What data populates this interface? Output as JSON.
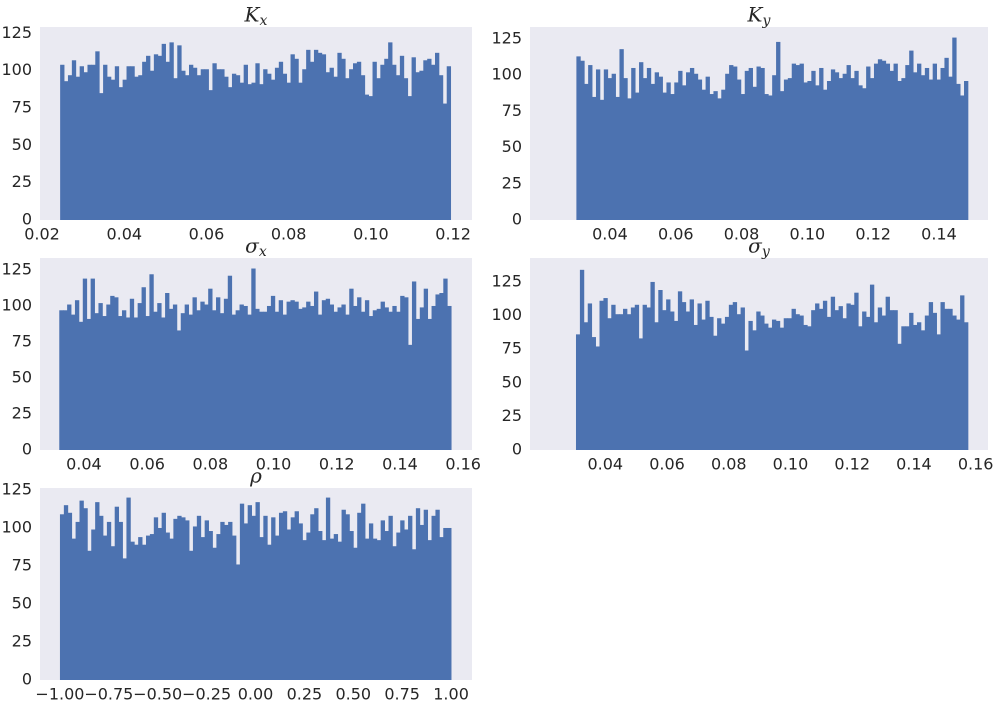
{
  "chart_data": [
    {
      "type": "histogram",
      "title": "K",
      "title_sub": "x",
      "color": "#4c72b0",
      "background": "#eaeaf2",
      "grid": false,
      "bins": [
        0.0244,
        0.02535,
        0.0263,
        0.02725,
        0.0282,
        0.02915,
        0.0301,
        0.03105,
        0.032,
        0.03295,
        0.0339,
        0.03485,
        0.0358,
        0.03675,
        0.0377,
        0.03865,
        0.0396,
        0.04055,
        0.0415,
        0.04245,
        0.0434,
        0.04435,
        0.0453,
        0.04625,
        0.0472,
        0.04815,
        0.0491,
        0.05005,
        0.051,
        0.05195,
        0.0529,
        0.05385,
        0.0548,
        0.05575,
        0.0567,
        0.05765,
        0.0586,
        0.05955,
        0.0605,
        0.06145,
        0.0624,
        0.06335,
        0.0643,
        0.06525,
        0.0662,
        0.06715,
        0.0681,
        0.06905,
        0.07,
        0.07095,
        0.0719,
        0.07285,
        0.0738,
        0.07475,
        0.0757,
        0.07665,
        0.0776,
        0.07855,
        0.0795,
        0.08045,
        0.0814,
        0.08235,
        0.0833,
        0.08425,
        0.0852,
        0.08615,
        0.0871,
        0.08805,
        0.089,
        0.08995,
        0.0909,
        0.09185,
        0.0928,
        0.09375,
        0.0947,
        0.09565,
        0.0966,
        0.09755,
        0.0985,
        0.09945,
        0.1004,
        0.10135,
        0.1023,
        0.10325,
        0.1042,
        0.10515,
        0.1061,
        0.10705,
        0.108,
        0.10895,
        0.1099,
        0.11085,
        0.1118,
        0.11275,
        0.1137,
        0.11465,
        0.1156,
        0.11655,
        0.1175,
        0.11845,
        0.1194
      ],
      "values": [
        104,
        93,
        97,
        107,
        96,
        103,
        99,
        104,
        104,
        113,
        85,
        104,
        96,
        94,
        103,
        89,
        94,
        103,
        103,
        96,
        97,
        106,
        110,
        100,
        111,
        110,
        118,
        106,
        119,
        95,
        117,
        100,
        97,
        104,
        102,
        97,
        101,
        101,
        87,
        105,
        101,
        101,
        96,
        89,
        98,
        97,
        92,
        104,
        91,
        92,
        105,
        91,
        101,
        98,
        94,
        102,
        106,
        98,
        92,
        111,
        108,
        92,
        101,
        114,
        106,
        114,
        112,
        111,
        99,
        102,
        96,
        112,
        108,
        95,
        101,
        105,
        106,
        97,
        84,
        83,
        106,
        95,
        104,
        108,
        119,
        104,
        97,
        110,
        95,
        83,
        109,
        99,
        100,
        107,
        108,
        104,
        112,
        97,
        78,
        103
      ],
      "xlim": [
        0.0195,
        0.1246
      ],
      "ylim": [
        0,
        129.3
      ],
      "xticks": [
        0.02,
        0.04,
        0.06,
        0.08,
        {
          "value": 0.1,
          "label": "0.10"
        },
        0.12
      ],
      "yticks": [
        0,
        25,
        50,
        75,
        100,
        125
      ]
    },
    {
      "type": "histogram",
      "title": "K",
      "title_sub": "y",
      "color": "#4c72b0",
      "background": "#eaeaf2",
      "grid": false,
      "bins": [
        0.0298,
        0.03099,
        0.03218,
        0.03337,
        0.03456,
        0.03575,
        0.03694,
        0.03813,
        0.03932,
        0.04051,
        0.0417,
        0.04289,
        0.04408,
        0.04527,
        0.04646,
        0.04765,
        0.04884,
        0.05003,
        0.05122,
        0.05241,
        0.0536,
        0.05479,
        0.05598,
        0.05717,
        0.05836,
        0.05955,
        0.06074,
        0.06193,
        0.06312,
        0.06431,
        0.0655,
        0.06669,
        0.06788,
        0.06907,
        0.07026,
        0.07145,
        0.07264,
        0.07383,
        0.07502,
        0.07621,
        0.0774,
        0.07859,
        0.07978,
        0.08097,
        0.08216,
        0.08335,
        0.08454,
        0.08573,
        0.08692,
        0.08811,
        0.0893,
        0.09049,
        0.09168,
        0.09287,
        0.09406,
        0.09525,
        0.09644,
        0.09763,
        0.09882,
        0.10001,
        0.1012,
        0.10239,
        0.10358,
        0.10477,
        0.10596,
        0.10715,
        0.10834,
        0.10953,
        0.11072,
        0.11191,
        0.1131,
        0.11429,
        0.11548,
        0.11667,
        0.11786,
        0.11905,
        0.12024,
        0.12143,
        0.12262,
        0.12381,
        0.125,
        0.12619,
        0.12738,
        0.12857,
        0.12976,
        0.13095,
        0.13214,
        0.13333,
        0.13452,
        0.13571,
        0.1369,
        0.13809,
        0.13928,
        0.14047,
        0.14166,
        0.14285,
        0.14404,
        0.14523,
        0.14642,
        0.14761,
        0.1488
      ],
      "values": [
        113,
        110,
        94,
        107,
        85,
        104,
        83,
        104,
        98,
        101,
        85,
        118,
        98,
        84,
        105,
        88,
        109,
        98,
        105,
        94,
        102,
        99,
        88,
        95,
        87,
        95,
        103,
        93,
        102,
        105,
        101,
        97,
        90,
        99,
        87,
        89,
        84,
        90,
        101,
        107,
        106,
        97,
        87,
        103,
        105,
        92,
        106,
        105,
        87,
        86,
        100,
        123,
        89,
        97,
        98,
        108,
        107,
        108,
        95,
        96,
        103,
        93,
        105,
        90,
        96,
        104,
        102,
        98,
        101,
        107,
        98,
        103,
        93,
        91,
        106,
        98,
        108,
        111,
        110,
        108,
        103,
        108,
        96,
        98,
        107,
        117,
        102,
        108,
        100,
        105,
        97,
        108,
        97,
        105,
        112,
        99,
        126,
        94,
        86,
        96
      ],
      "xlim": [
        0.0157,
        0.1549
      ],
      "ylim": [
        0,
        133.3
      ],
      "xticks": [
        0.04,
        0.06,
        0.08,
        {
          "value": 0.1,
          "label": "0.10"
        },
        0.12,
        0.14
      ],
      "yticks": [
        0,
        25,
        50,
        75,
        100,
        125
      ]
    },
    {
      "type": "histogram",
      "title": "σ",
      "title_sub": "x",
      "color": "#4c72b0",
      "background": "#eaeaf2",
      "grid": false,
      "bins": [
        0.0322,
        0.03344,
        0.03468,
        0.03592,
        0.03716,
        0.0384,
        0.03964,
        0.04088,
        0.04212,
        0.04336,
        0.0446,
        0.04584,
        0.04708,
        0.04832,
        0.04956,
        0.0508,
        0.05204,
        0.05328,
        0.05452,
        0.05576,
        0.057,
        0.05824,
        0.05948,
        0.06072,
        0.06196,
        0.0632,
        0.06444,
        0.06568,
        0.06692,
        0.06816,
        0.0694,
        0.07064,
        0.07188,
        0.07312,
        0.07436,
        0.0756,
        0.07684,
        0.07808,
        0.07932,
        0.08056,
        0.0818,
        0.08304,
        0.08428,
        0.08552,
        0.08676,
        0.088,
        0.08924,
        0.09048,
        0.09172,
        0.09296,
        0.0942,
        0.09544,
        0.09668,
        0.09792,
        0.09916,
        0.1004,
        0.10164,
        0.10288,
        0.10412,
        0.10536,
        0.1066,
        0.10784,
        0.10908,
        0.11032,
        0.11156,
        0.1128,
        0.11404,
        0.11528,
        0.11652,
        0.11776,
        0.119,
        0.12024,
        0.12148,
        0.12272,
        0.12396,
        0.1252,
        0.12644,
        0.12768,
        0.12892,
        0.13016,
        0.1314,
        0.13264,
        0.13388,
        0.13512,
        0.13636,
        0.1376,
        0.13884,
        0.14008,
        0.14132,
        0.14256,
        0.1438,
        0.14504,
        0.14628,
        0.14752,
        0.14876,
        0.15,
        0.15124,
        0.15248,
        0.15372,
        0.15496,
        0.1562
      ],
      "values": [
        97,
        97,
        101,
        94,
        104,
        89,
        119,
        91,
        119,
        95,
        102,
        93,
        101,
        107,
        106,
        93,
        97,
        92,
        105,
        92,
        102,
        113,
        93,
        122,
        96,
        102,
        92,
        109,
        98,
        101,
        83,
        95,
        101,
        94,
        106,
        97,
        103,
        101,
        112,
        97,
        106,
        95,
        105,
        121,
        94,
        97,
        101,
        100,
        94,
        126,
        98,
        96,
        96,
        100,
        107,
        96,
        104,
        94,
        103,
        104,
        103,
        98,
        99,
        103,
        100,
        110,
        94,
        104,
        105,
        101,
        96,
        99,
        101,
        94,
        112,
        100,
        106,
        96,
        104,
        93,
        97,
        98,
        103,
        99,
        96,
        100,
        96,
        107,
        106,
        73,
        117,
        91,
        99,
        112,
        91,
        100,
        108,
        109,
        119,
        100
      ],
      "xlim": [
        0.0261,
        0.1628
      ],
      "ylim": [
        0,
        133.3
      ],
      "xticks": [
        0.04,
        0.06,
        0.08,
        {
          "value": 0.1,
          "label": "0.10"
        },
        0.12,
        0.14,
        {
          "value": 0.16,
          "label": "0.16"
        }
      ],
      "yticks": [
        0,
        25,
        50,
        75,
        100,
        125
      ]
    },
    {
      "type": "histogram",
      "title": "σ",
      "title_sub": "y",
      "color": "#4c72b0",
      "background": "#eaeaf2",
      "grid": false,
      "bins": [
        0.0305,
        0.03177,
        0.03304,
        0.03431,
        0.03558,
        0.03685,
        0.03812,
        0.03939,
        0.04066,
        0.04193,
        0.0432,
        0.04447,
        0.04574,
        0.04701,
        0.04828,
        0.04955,
        0.05082,
        0.05209,
        0.05336,
        0.05463,
        0.0559,
        0.05717,
        0.05844,
        0.05971,
        0.06098,
        0.06225,
        0.06352,
        0.06479,
        0.06606,
        0.06733,
        0.0686,
        0.06987,
        0.07114,
        0.07241,
        0.07368,
        0.07495,
        0.07622,
        0.07749,
        0.07876,
        0.08003,
        0.0813,
        0.08257,
        0.08384,
        0.08511,
        0.08638,
        0.08765,
        0.08892,
        0.09019,
        0.09146,
        0.09273,
        0.094,
        0.09527,
        0.09654,
        0.09781,
        0.09908,
        0.10035,
        0.10162,
        0.10289,
        0.10416,
        0.10543,
        0.1067,
        0.10797,
        0.10924,
        0.11051,
        0.11178,
        0.11305,
        0.11432,
        0.11559,
        0.11686,
        0.11813,
        0.1194,
        0.12067,
        0.12194,
        0.12321,
        0.12448,
        0.12575,
        0.12702,
        0.12829,
        0.12956,
        0.13083,
        0.1321,
        0.13337,
        0.13464,
        0.13591,
        0.13718,
        0.13845,
        0.13972,
        0.14099,
        0.14226,
        0.14353,
        0.1448,
        0.14607,
        0.14734,
        0.14861,
        0.14988,
        0.15115,
        0.15242,
        0.15369,
        0.15496,
        0.15623,
        0.1575
      ],
      "values": [
        86,
        134,
        95,
        109,
        84,
        77,
        111,
        113,
        98,
        108,
        101,
        101,
        105,
        101,
        106,
        108,
        83,
        108,
        106,
        125,
        95,
        119,
        104,
        112,
        103,
        96,
        118,
        110,
        103,
        112,
        93,
        109,
        97,
        111,
        99,
        85,
        98,
        94,
        99,
        108,
        110,
        101,
        106,
        74,
        96,
        89,
        103,
        100,
        94,
        91,
        97,
        96,
        91,
        98,
        98,
        105,
        101,
        100,
        93,
        92,
        104,
        109,
        105,
        111,
        99,
        114,
        104,
        107,
        98,
        109,
        108,
        117,
        92,
        103,
        99,
        123,
        95,
        106,
        100,
        114,
        104,
        104,
        79,
        92,
        92,
        102,
        93,
        95,
        89,
        100,
        110,
        102,
        86,
        110,
        105,
        105,
        100,
        97,
        115,
        95
      ],
      "xlim": [
        0.0156,
        0.164
      ],
      "ylim": [
        0,
        142.8
      ],
      "xticks": [
        0.04,
        0.06,
        0.08,
        {
          "value": 0.1,
          "label": "0.10"
        },
        0.12,
        0.14,
        {
          "value": 0.16,
          "label": "0.16"
        }
      ],
      "yticks": [
        0,
        25,
        50,
        75,
        100,
        125
      ]
    },
    {
      "type": "histogram",
      "title": "ρ",
      "color": "#4c72b0",
      "background": "#eaeaf2",
      "grid": false,
      "bins": [
        -1,
        -0.98,
        -0.96,
        -0.94,
        -0.92,
        -0.9,
        -0.88,
        -0.86,
        -0.84,
        -0.82,
        -0.8,
        -0.78,
        -0.76,
        -0.74,
        -0.72,
        -0.7,
        -0.68,
        -0.66,
        -0.64,
        -0.62,
        -0.6,
        -0.58,
        -0.56,
        -0.54,
        -0.52,
        -0.5,
        -0.48,
        -0.46,
        -0.44,
        -0.42,
        -0.4,
        -0.38,
        -0.36,
        -0.34,
        -0.32,
        -0.3,
        -0.28,
        -0.26,
        -0.24,
        -0.22,
        -0.2,
        -0.18,
        -0.16,
        -0.14,
        -0.12,
        -0.1,
        -0.08,
        -0.06,
        -0.04,
        -0.02,
        0,
        0.02,
        0.04,
        0.06,
        0.08,
        0.1,
        0.12,
        0.14,
        0.16,
        0.18,
        0.2,
        0.22,
        0.24,
        0.26,
        0.28,
        0.3,
        0.32,
        0.34,
        0.36,
        0.38,
        0.4,
        0.42,
        0.44,
        0.46,
        0.48,
        0.5,
        0.52,
        0.54,
        0.56,
        0.58,
        0.6,
        0.62,
        0.64,
        0.66,
        0.68,
        0.7,
        0.72,
        0.74,
        0.76,
        0.78,
        0.8,
        0.82,
        0.84,
        0.86,
        0.88,
        0.9,
        0.92,
        0.94,
        0.96,
        0.98,
        1
      ],
      "values": [
        109,
        115,
        110,
        93,
        104,
        118,
        113,
        85,
        99,
        117,
        108,
        95,
        104,
        88,
        114,
        104,
        80,
        120,
        91,
        89,
        94,
        89,
        95,
        96,
        107,
        100,
        110,
        97,
        93,
        106,
        108,
        107,
        105,
        85,
        101,
        108,
        94,
        105,
        98,
        87,
        96,
        104,
        102,
        104,
        95,
        76,
        116,
        103,
        115,
        108,
        117,
        94,
        108,
        89,
        107,
        95,
        110,
        111,
        99,
        107,
        111,
        103,
        92,
        97,
        109,
        113,
        98,
        92,
        120,
        93,
        96,
        91,
        112,
        109,
        98,
        87,
        110,
        116,
        93,
        103,
        93,
        92,
        105,
        98,
        108,
        88,
        97,
        105,
        99,
        108,
        86,
        113,
        102,
        112,
        92,
        108,
        112,
        94,
        100,
        100
      ],
      "xlim": [
        -1.102,
        1.107
      ],
      "ylim": [
        0,
        126.3
      ],
      "xticks": [
        {
          "value": -1,
          "label": "−1.00"
        },
        {
          "value": -0.75,
          "label": "−0.75"
        },
        {
          "value": -0.5,
          "label": "−0.50"
        },
        {
          "value": -0.25,
          "label": "−0.25"
        },
        {
          "value": 0,
          "label": "0.00"
        },
        0.25,
        {
          "value": 0.5,
          "label": "0.50"
        },
        0.75,
        {
          "value": 1,
          "label": "1.00"
        }
      ],
      "yticks": [
        0,
        25,
        50,
        75,
        100,
        125
      ]
    }
  ]
}
